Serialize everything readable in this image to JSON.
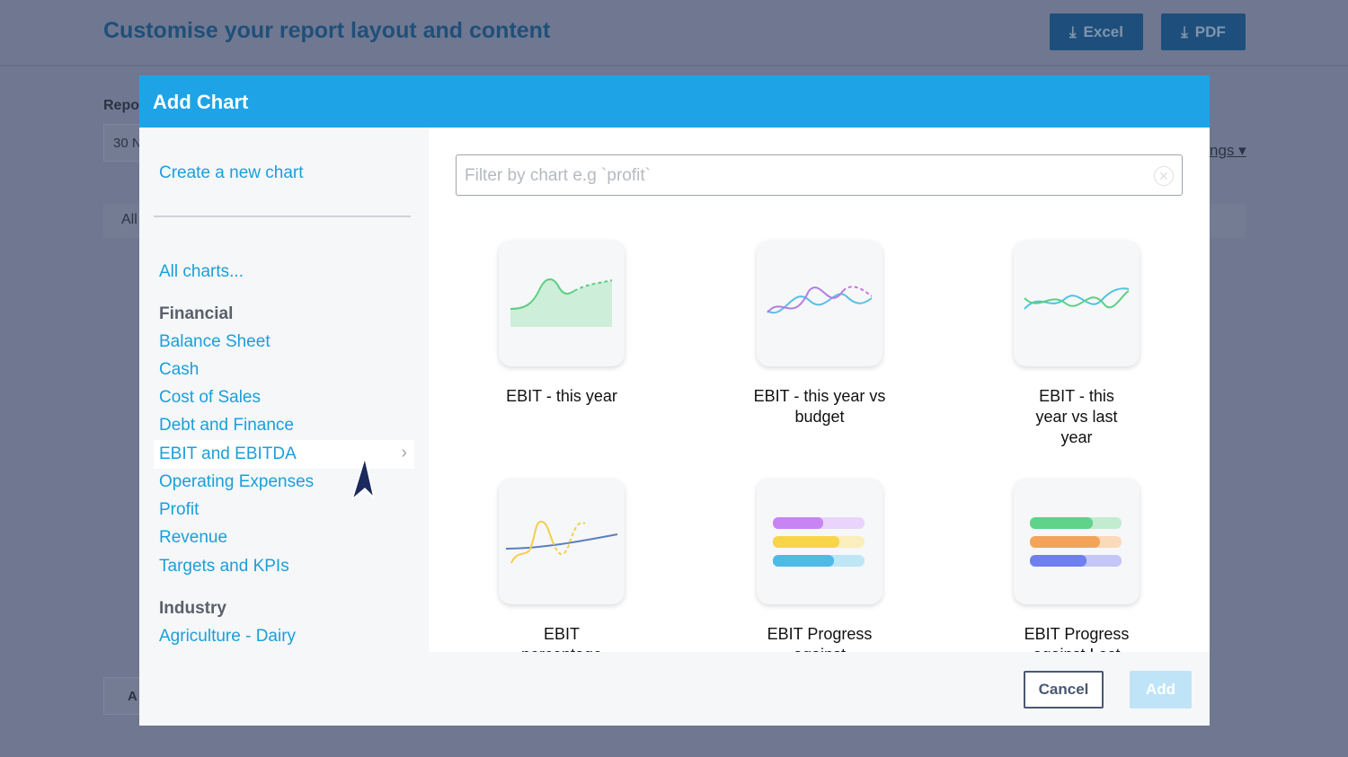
{
  "background": {
    "title": "Customise your report layout and content",
    "excel": "Excel",
    "pdf": "PDF",
    "report_label": "Repo",
    "date_value": "30 N",
    "settings_link": "ngs",
    "tab_all": "All",
    "add_button": "A"
  },
  "modal": {
    "title": "Add Chart",
    "sidebar": {
      "create": "Create a new chart",
      "all": "All charts...",
      "groups": [
        {
          "heading": "Financial",
          "items": [
            "Balance Sheet",
            "Cash",
            "Cost of Sales",
            "Debt and Finance",
            "EBIT and EBITDA",
            "Operating Expenses",
            "Profit",
            "Revenue",
            "Targets and KPIs"
          ]
        },
        {
          "heading": "Industry",
          "items": [
            "Agriculture - Dairy"
          ]
        }
      ],
      "selected": "EBIT and EBITDA"
    },
    "filter": {
      "placeholder": "Filter by chart e.g `profit`"
    },
    "charts": [
      {
        "label": "EBIT - this year",
        "icon": "area-chart-icon"
      },
      {
        "label": "EBIT - this year vs budget",
        "icon": "line-vs-budget-chart-icon"
      },
      {
        "label": "EBIT - this year vs last year",
        "icon": "line-vs-last-year-chart-icon"
      },
      {
        "label": "EBIT percentage",
        "icon": "percentage-line-chart-icon"
      },
      {
        "label": "EBIT Progress against",
        "icon": "progress-bars-icon"
      },
      {
        "label": "EBIT Progress against Last",
        "icon": "progress-bars-icon"
      }
    ],
    "cancel": "Cancel",
    "add": "Add"
  },
  "colors": {
    "header": "#1ea4e6",
    "link": "#1a9fd9",
    "overlay": "#6f7890"
  }
}
